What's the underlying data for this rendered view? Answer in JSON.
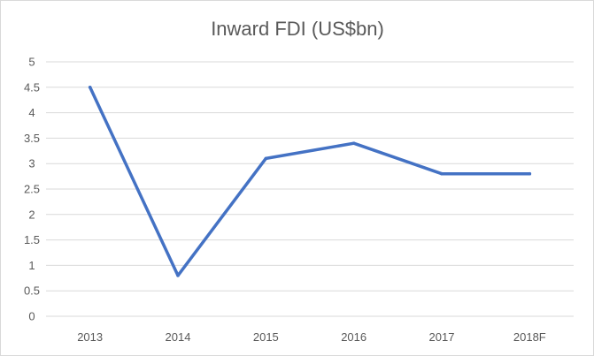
{
  "chart_data": {
    "type": "line",
    "title": "Inward FDI (US$bn)",
    "categories": [
      "2013",
      "2014",
      "2015",
      "2016",
      "2017",
      "2018F"
    ],
    "series": [
      {
        "values": [
          4.5,
          0.8,
          3.1,
          3.4,
          2.8,
          2.8
        ]
      }
    ],
    "ylim": [
      0,
      5
    ],
    "yticks": [
      "0",
      "0.5",
      "1",
      "1.5",
      "2",
      "2.5",
      "3",
      "3.5",
      "4",
      "4.5",
      "5"
    ],
    "grid": "horizontal",
    "legend": "none",
    "colors": {
      "line": "#4472c4",
      "grid": "#d9d9d9",
      "text": "#595959"
    }
  }
}
